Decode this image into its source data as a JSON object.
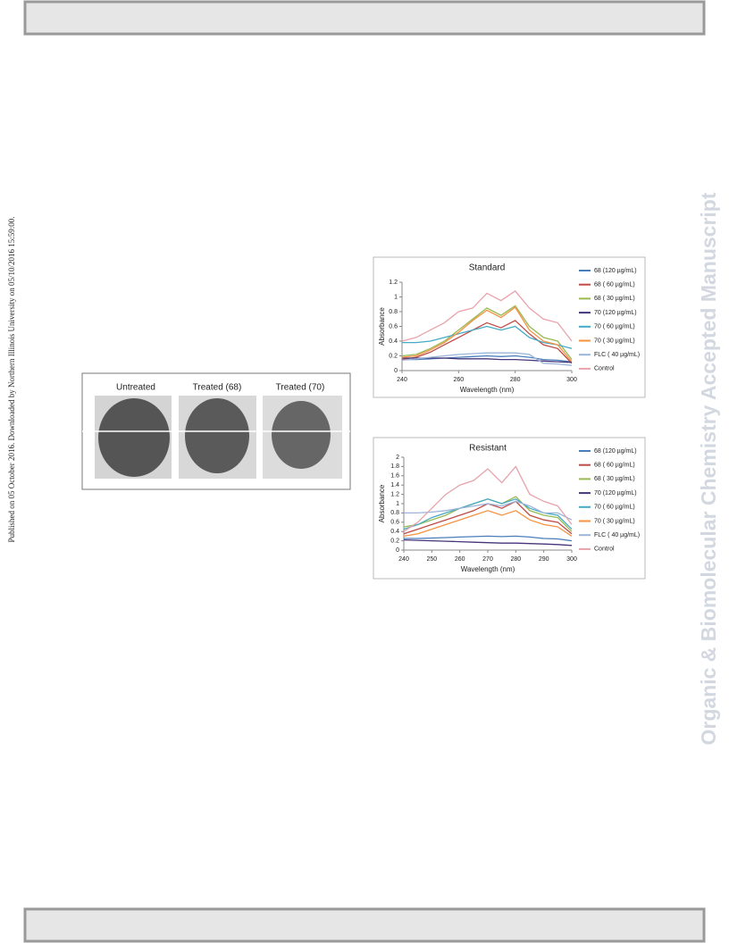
{
  "side_text": "Published on 05 October 2016. Downloaded by Northern Illinois University on 05/10/2016 15:59:00.",
  "watermark": "Organic & Biomolecular Chemistry Accepted Manuscript",
  "micrographs": {
    "labels": [
      "Untreated",
      "Treated (68)",
      "Treated (70)"
    ]
  },
  "chart_data": [
    {
      "type": "line",
      "title": "Standard",
      "x_label": "Wavelength (nm)",
      "y_label": "Absorbance",
      "x": [
        240,
        245,
        250,
        255,
        260,
        265,
        270,
        275,
        280,
        285,
        290,
        295,
        300
      ],
      "xlim": [
        240,
        300
      ],
      "xticks": [
        240,
        260,
        280,
        300
      ],
      "ylim": [
        0,
        1.2
      ],
      "yticks": [
        0,
        0.2,
        0.4,
        0.6,
        0.8,
        1,
        1.2
      ],
      "series": [
        {
          "name": "68 (120 µg/mL)",
          "color": "#4a7ebb",
          "values": [
            0.15,
            0.15,
            0.16,
            0.17,
            0.18,
            0.19,
            0.2,
            0.19,
            0.2,
            0.18,
            0.15,
            0.14,
            0.12
          ]
        },
        {
          "name": "68 ( 60 µg/mL)",
          "color": "#be4b48",
          "values": [
            0.15,
            0.18,
            0.25,
            0.35,
            0.45,
            0.55,
            0.65,
            0.58,
            0.68,
            0.5,
            0.35,
            0.3,
            0.1
          ]
        },
        {
          "name": "68 ( 30 µg/mL)",
          "color": "#98b954",
          "values": [
            0.2,
            0.22,
            0.3,
            0.4,
            0.55,
            0.7,
            0.85,
            0.75,
            0.88,
            0.6,
            0.45,
            0.4,
            0.15
          ]
        },
        {
          "name": "70 (120 µg/mL)",
          "color": "#46357a",
          "values": [
            0.17,
            0.17,
            0.17,
            0.17,
            0.16,
            0.16,
            0.16,
            0.15,
            0.15,
            0.14,
            0.13,
            0.12,
            0.11
          ]
        },
        {
          "name": "70 ( 60 µg/mL)",
          "color": "#46aac5",
          "values": [
            0.38,
            0.38,
            0.4,
            0.45,
            0.5,
            0.55,
            0.6,
            0.55,
            0.6,
            0.45,
            0.38,
            0.35,
            0.3
          ]
        },
        {
          "name": "70 ( 30 µg/mL)",
          "color": "#f69240",
          "values": [
            0.18,
            0.2,
            0.28,
            0.38,
            0.52,
            0.68,
            0.82,
            0.72,
            0.86,
            0.55,
            0.4,
            0.35,
            0.12
          ]
        },
        {
          "name": "FLC ( 40 µg/mL)",
          "color": "#9cb4d8",
          "values": [
            0.14,
            0.16,
            0.18,
            0.2,
            0.22,
            0.23,
            0.24,
            0.24,
            0.24,
            0.22,
            0.1,
            0.09,
            0.07
          ]
        },
        {
          "name": "Control",
          "color": "#e7a3ab",
          "values": [
            0.4,
            0.45,
            0.55,
            0.65,
            0.8,
            0.85,
            1.05,
            0.95,
            1.08,
            0.85,
            0.7,
            0.65,
            0.4
          ]
        }
      ]
    },
    {
      "type": "line",
      "title": "Resistant",
      "x_label": "Wavelength (nm)",
      "y_label": "Absorbance",
      "x": [
        240,
        245,
        250,
        255,
        260,
        265,
        270,
        275,
        280,
        285,
        290,
        295,
        300
      ],
      "xlim": [
        240,
        300
      ],
      "xticks": [
        240,
        250,
        260,
        270,
        280,
        290,
        300
      ],
      "ylim": [
        0,
        2
      ],
      "yticks": [
        0,
        0.2,
        0.4,
        0.6,
        0.8,
        1,
        1.2,
        1.4,
        1.6,
        1.8,
        2
      ],
      "series": [
        {
          "name": "68 (120 µg/mL)",
          "color": "#4a7ebb",
          "values": [
            0.25,
            0.25,
            0.26,
            0.27,
            0.28,
            0.29,
            0.3,
            0.29,
            0.3,
            0.28,
            0.25,
            0.24,
            0.2
          ]
        },
        {
          "name": "68 ( 60 µg/mL)",
          "color": "#be4b48",
          "values": [
            0.35,
            0.45,
            0.55,
            0.65,
            0.75,
            0.85,
            1.0,
            0.9,
            1.05,
            0.75,
            0.65,
            0.6,
            0.35
          ]
        },
        {
          "name": "68 ( 30 µg/mL)",
          "color": "#98b954",
          "values": [
            0.5,
            0.55,
            0.65,
            0.75,
            0.9,
            1.0,
            1.1,
            1.0,
            1.15,
            0.85,
            0.75,
            0.7,
            0.4
          ]
        },
        {
          "name": "70 (120 µg/mL)",
          "color": "#46357a",
          "values": [
            0.22,
            0.21,
            0.2,
            0.19,
            0.18,
            0.17,
            0.16,
            0.15,
            0.15,
            0.14,
            0.13,
            0.12,
            0.1
          ]
        },
        {
          "name": "70 ( 60 µg/mL)",
          "color": "#46aac5",
          "values": [
            0.45,
            0.55,
            0.7,
            0.8,
            0.9,
            1.0,
            1.1,
            1.0,
            1.1,
            0.9,
            0.8,
            0.75,
            0.45
          ]
        },
        {
          "name": "70 ( 30 µg/mL)",
          "color": "#f69240",
          "values": [
            0.3,
            0.35,
            0.45,
            0.55,
            0.65,
            0.75,
            0.85,
            0.75,
            0.85,
            0.65,
            0.55,
            0.5,
            0.3
          ]
        },
        {
          "name": "FLC ( 40 µg/mL)",
          "color": "#9cb4d8",
          "values": [
            0.8,
            0.8,
            0.82,
            0.85,
            0.9,
            0.95,
            1.0,
            0.95,
            1.05,
            0.95,
            0.8,
            0.8,
            0.65
          ]
        },
        {
          "name": "Control",
          "color": "#e7a3ab",
          "values": [
            0.4,
            0.6,
            0.9,
            1.2,
            1.4,
            1.5,
            1.75,
            1.45,
            1.8,
            1.2,
            1.05,
            0.95,
            0.55
          ]
        }
      ]
    }
  ]
}
